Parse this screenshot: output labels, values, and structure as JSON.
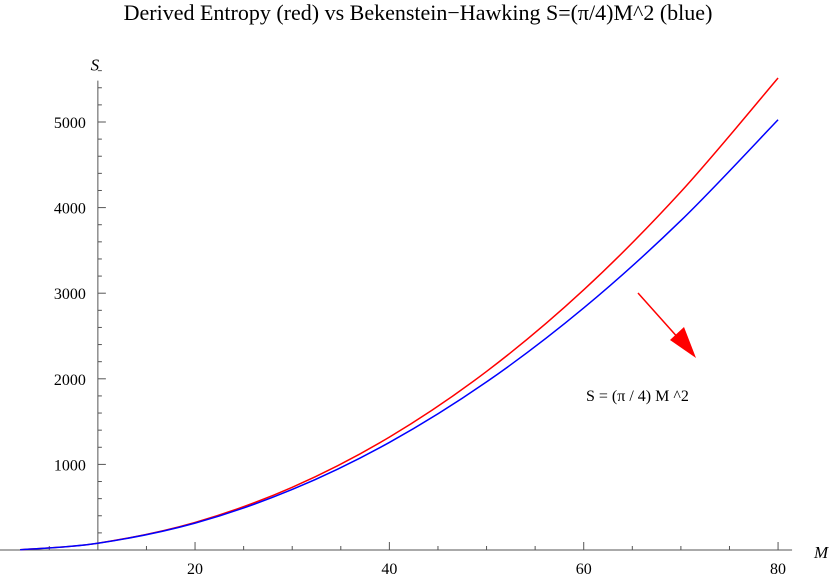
{
  "chart_data": {
    "type": "line",
    "title": "Derived Entropy (red) vs Bekenstein−Hawking S=(π/4)M^2 (blue)",
    "xlabel": "M",
    "ylabel": "S",
    "xlim": [
      2,
      80
    ],
    "ylim": [
      0,
      5600
    ],
    "axes_origin": [
      10,
      0
    ],
    "xticks": [
      20,
      40,
      60,
      80
    ],
    "yticks": [
      1000,
      2000,
      3000,
      4000,
      5000
    ],
    "grid": false,
    "series": [
      {
        "color": "#ff0000",
        "x": [
          2,
          10,
          20,
          30,
          40,
          50,
          60,
          70,
          80
        ],
        "y": [
          3.2,
          79.5,
          322,
          733,
          1319,
          2086,
          3039,
          4185,
          5514
        ]
      },
      {
        "color": "#0000ff",
        "x": [
          2,
          10,
          20,
          30,
          40,
          50,
          60,
          70,
          80
        ],
        "y": [
          3.1,
          78.5,
          314.2,
          706.9,
          1256.6,
          1963.5,
          2827.4,
          3848.5,
          5026.5
        ]
      }
    ],
    "annotation": {
      "text": "S = (π / 4) M ^2",
      "arrow_color": "#ff0000"
    }
  }
}
